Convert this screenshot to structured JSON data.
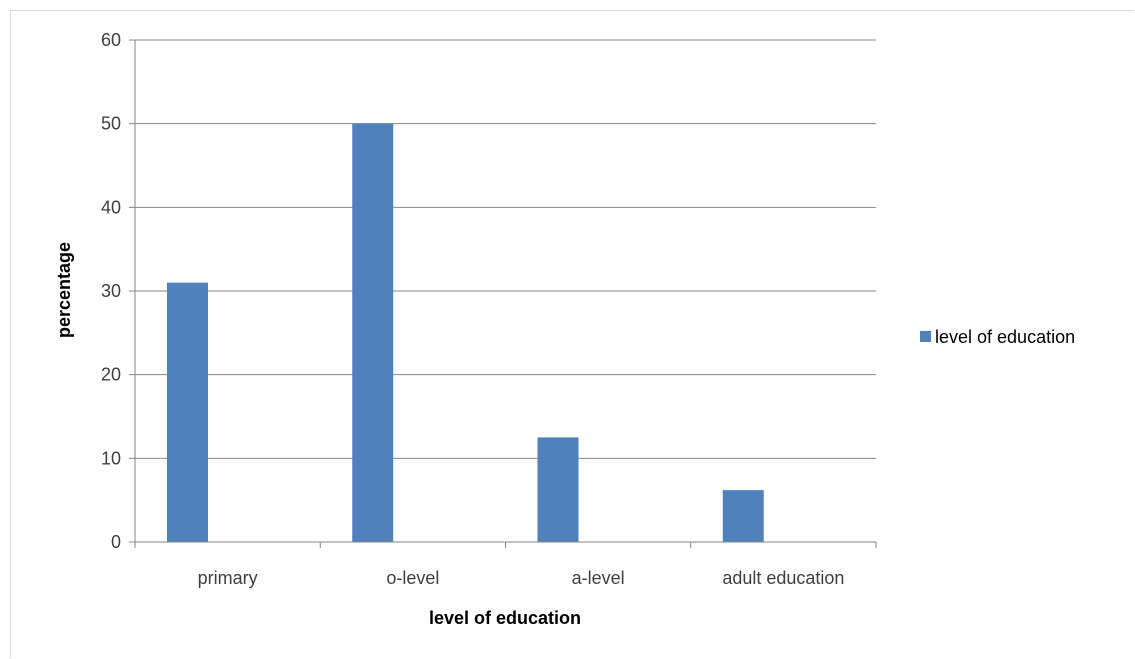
{
  "chart_data": {
    "type": "bar",
    "categories": [
      "primary",
      "o-level",
      "a-level",
      "adult education"
    ],
    "series": [
      {
        "name": "level of education",
        "values": [
          31,
          50,
          12.5,
          6.2
        ]
      }
    ],
    "xlabel": "level of education",
    "ylabel": "percentage",
    "ylim": [
      0,
      60
    ],
    "yticks": [
      "0",
      "10",
      "20",
      "30",
      "40",
      "50",
      "60"
    ],
    "grid": true,
    "legend_position": "right",
    "bar_color": "#4f81bd"
  }
}
